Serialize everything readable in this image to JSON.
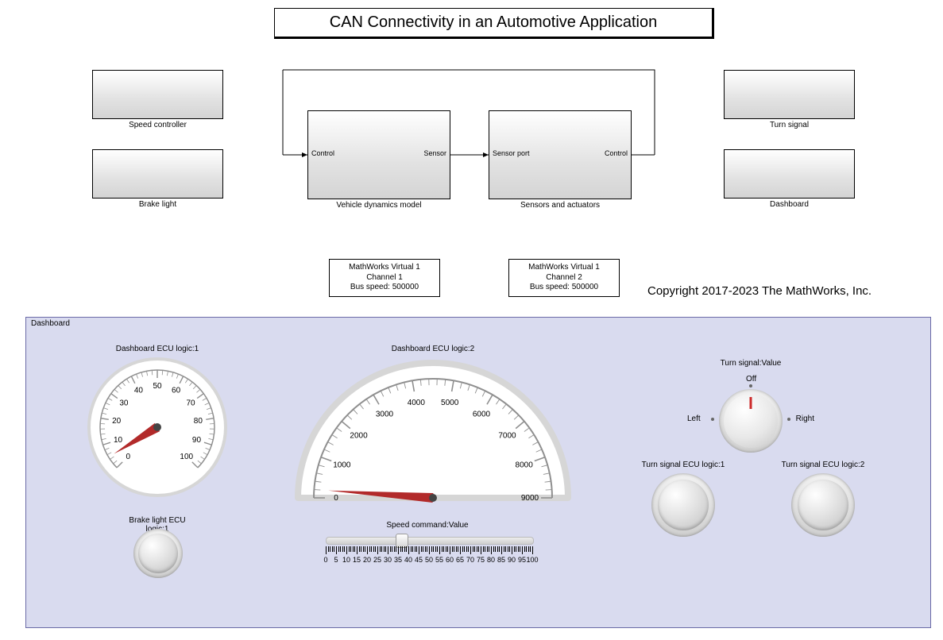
{
  "title": "CAN Connectivity in an Automotive Application",
  "copyright": "Copyright 2017-2023 The MathWorks, Inc.",
  "blocks": {
    "speed_ctrl": {
      "label": "Speed controller"
    },
    "brake_light": {
      "label": "Brake light"
    },
    "vdm": {
      "label": "Vehicle dynamics model",
      "port_left": "Control",
      "port_right": "Sensor"
    },
    "sensors": {
      "label": "Sensors and actuators",
      "port_left": "Sensor port",
      "port_right": "Control"
    },
    "turn_signal": {
      "label": "Turn signal"
    },
    "dashboard": {
      "label": "Dashboard"
    }
  },
  "configs": {
    "cfg1": {
      "l1": "MathWorks Virtual 1",
      "l2": "Channel 1",
      "l3": "Bus speed: 500000"
    },
    "cfg2": {
      "l1": "MathWorks Virtual 1",
      "l2": "Channel 2",
      "l3": "Bus speed: 500000"
    }
  },
  "dashboard_panel": {
    "title": "Dashboard"
  },
  "gauge1": {
    "title": "Dashboard ECU logic:1",
    "min": 0,
    "max": 100,
    "value": 5,
    "ticks": [
      0,
      10,
      20,
      30,
      40,
      50,
      60,
      70,
      80,
      90,
      100
    ]
  },
  "gauge2": {
    "title": "Dashboard ECU logic:2",
    "min": 0,
    "max": 9000,
    "value": 200,
    "ticks": [
      0,
      1000,
      2000,
      3000,
      4000,
      5000,
      6000,
      7000,
      8000,
      9000
    ]
  },
  "led_brake": {
    "title": "Brake light ECU logic:1"
  },
  "led_ts1": {
    "title": "Turn signal ECU logic:1"
  },
  "led_ts2": {
    "title": "Turn signal ECU logic:2"
  },
  "knob": {
    "title": "Turn signal:Value",
    "labels": {
      "left": "Left",
      "off": "Off",
      "right": "Right"
    }
  },
  "slider": {
    "title": "Speed command:Value",
    "min": 0,
    "max": 100,
    "value": 36,
    "ticks": [
      0,
      5,
      10,
      15,
      20,
      25,
      30,
      35,
      40,
      45,
      50,
      55,
      60,
      65,
      70,
      75,
      80,
      85,
      90,
      95,
      100
    ]
  },
  "colors": {
    "needle": "#b22a2a",
    "dash_bg": "#d9dbef",
    "dash_border": "#6a6aa7",
    "gauge_arc": "#8f8f8f",
    "gauge_frame": "#d6d6d6"
  }
}
